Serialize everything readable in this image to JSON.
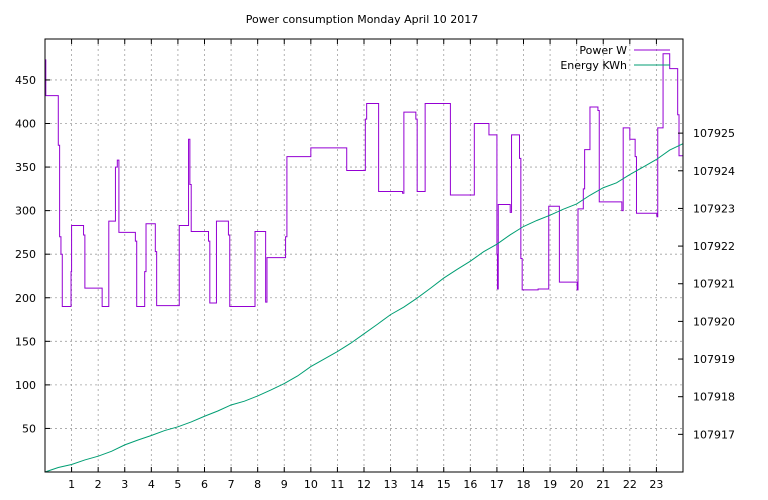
{
  "chart_data": {
    "type": "line",
    "title": "Power consumption Monday April 10 2017",
    "xlabel": "",
    "ylabel": "",
    "y2label": "",
    "xlim": [
      0,
      24
    ],
    "ylim": [
      0,
      497
    ],
    "y2lim": [
      107916,
      107927.5
    ],
    "x_ticks": [
      1,
      2,
      3,
      4,
      5,
      6,
      7,
      8,
      9,
      10,
      11,
      12,
      13,
      14,
      15,
      16,
      17,
      18,
      19,
      20,
      21,
      22,
      23
    ],
    "y_ticks": [
      50,
      100,
      150,
      200,
      250,
      300,
      350,
      400,
      450
    ],
    "y2_ticks": [
      107917,
      107918,
      107919,
      107920,
      107921,
      107922,
      107923,
      107924,
      107925
    ],
    "grid": true,
    "legend_position": "top-right",
    "series": [
      {
        "name": "Power W",
        "axis": "y",
        "color": "#9400d3",
        "style": "steps",
        "points": [
          [
            0.0,
            473
          ],
          [
            0.03,
            432
          ],
          [
            0.45,
            432
          ],
          [
            0.5,
            375
          ],
          [
            0.55,
            270
          ],
          [
            0.6,
            250
          ],
          [
            0.65,
            190
          ],
          [
            0.95,
            190
          ],
          [
            0.98,
            230
          ],
          [
            1.0,
            283
          ],
          [
            1.4,
            283
          ],
          [
            1.45,
            272
          ],
          [
            1.5,
            211
          ],
          [
            2.1,
            211
          ],
          [
            2.15,
            190
          ],
          [
            2.35,
            190
          ],
          [
            2.4,
            288
          ],
          [
            2.6,
            288
          ],
          [
            2.65,
            350
          ],
          [
            2.72,
            358
          ],
          [
            2.78,
            275
          ],
          [
            3.35,
            275
          ],
          [
            3.4,
            265
          ],
          [
            3.45,
            190
          ],
          [
            3.7,
            190
          ],
          [
            3.75,
            230
          ],
          [
            3.8,
            285
          ],
          [
            4.1,
            285
          ],
          [
            4.15,
            253
          ],
          [
            4.2,
            191
          ],
          [
            5.0,
            191
          ],
          [
            5.05,
            283
          ],
          [
            5.35,
            283
          ],
          [
            5.4,
            382
          ],
          [
            5.45,
            330
          ],
          [
            5.5,
            276
          ],
          [
            6.1,
            276
          ],
          [
            6.15,
            265
          ],
          [
            6.2,
            194
          ],
          [
            6.4,
            194
          ],
          [
            6.45,
            288
          ],
          [
            6.85,
            288
          ],
          [
            6.9,
            272
          ],
          [
            6.95,
            190
          ],
          [
            7.85,
            190
          ],
          [
            7.9,
            276
          ],
          [
            8.25,
            276
          ],
          [
            8.3,
            195
          ],
          [
            8.35,
            246
          ],
          [
            9.0,
            246
          ],
          [
            9.05,
            270
          ],
          [
            9.1,
            362
          ],
          [
            9.95,
            362
          ],
          [
            10.0,
            372
          ],
          [
            11.3,
            372
          ],
          [
            11.35,
            346
          ],
          [
            12.0,
            346
          ],
          [
            12.05,
            405
          ],
          [
            12.1,
            423
          ],
          [
            12.5,
            423
          ],
          [
            12.55,
            322
          ],
          [
            13.4,
            322
          ],
          [
            13.45,
            320
          ],
          [
            13.5,
            413
          ],
          [
            13.9,
            413
          ],
          [
            13.95,
            405
          ],
          [
            14.0,
            322
          ],
          [
            14.25,
            322
          ],
          [
            14.3,
            423
          ],
          [
            15.2,
            423
          ],
          [
            15.25,
            318
          ],
          [
            16.1,
            318
          ],
          [
            16.15,
            400
          ],
          [
            16.65,
            400
          ],
          [
            16.7,
            387
          ],
          [
            16.95,
            387
          ],
          [
            17.0,
            250
          ],
          [
            17.02,
            210
          ],
          [
            17.05,
            307
          ],
          [
            17.45,
            307
          ],
          [
            17.5,
            298
          ],
          [
            17.55,
            387
          ],
          [
            17.8,
            387
          ],
          [
            17.85,
            360
          ],
          [
            17.9,
            245
          ],
          [
            17.95,
            209
          ],
          [
            18.5,
            209
          ],
          [
            18.55,
            210
          ],
          [
            18.9,
            210
          ],
          [
            18.95,
            305
          ],
          [
            19.3,
            305
          ],
          [
            19.35,
            218
          ],
          [
            20.0,
            218
          ],
          [
            20.02,
            209
          ],
          [
            20.05,
            302
          ],
          [
            20.2,
            302
          ],
          [
            20.25,
            325
          ],
          [
            20.3,
            370
          ],
          [
            20.45,
            370
          ],
          [
            20.5,
            419
          ],
          [
            20.75,
            419
          ],
          [
            20.8,
            415
          ],
          [
            20.85,
            310
          ],
          [
            21.65,
            310
          ],
          [
            21.7,
            300
          ],
          [
            21.75,
            395
          ],
          [
            21.95,
            395
          ],
          [
            22.0,
            382
          ],
          [
            22.15,
            382
          ],
          [
            22.2,
            362
          ],
          [
            22.25,
            297
          ],
          [
            23.0,
            297
          ],
          [
            23.02,
            293
          ],
          [
            23.05,
            395
          ],
          [
            23.2,
            395
          ],
          [
            23.25,
            480
          ],
          [
            23.45,
            480
          ],
          [
            23.5,
            463
          ],
          [
            23.75,
            463
          ],
          [
            23.8,
            410
          ],
          [
            23.85,
            363
          ],
          [
            24.0,
            363
          ]
        ]
      },
      {
        "name": "Energy KWh",
        "axis": "y2",
        "color": "#009e73",
        "style": "line",
        "points": [
          [
            0.0,
            107916.0
          ],
          [
            0.5,
            107916.12
          ],
          [
            1.0,
            107916.2
          ],
          [
            1.5,
            107916.32
          ],
          [
            2.0,
            107916.42
          ],
          [
            2.5,
            107916.55
          ],
          [
            3.0,
            107916.72
          ],
          [
            3.5,
            107916.85
          ],
          [
            4.0,
            107916.97
          ],
          [
            4.5,
            107917.1
          ],
          [
            5.0,
            107917.2
          ],
          [
            5.5,
            107917.33
          ],
          [
            6.0,
            107917.48
          ],
          [
            6.5,
            107917.62
          ],
          [
            7.0,
            107917.78
          ],
          [
            7.5,
            107917.88
          ],
          [
            8.0,
            107918.02
          ],
          [
            8.5,
            107918.18
          ],
          [
            9.0,
            107918.35
          ],
          [
            9.5,
            107918.55
          ],
          [
            10.0,
            107918.8
          ],
          [
            10.5,
            107919.0
          ],
          [
            11.0,
            107919.2
          ],
          [
            11.5,
            107919.42
          ],
          [
            12.0,
            107919.67
          ],
          [
            12.5,
            107919.92
          ],
          [
            13.0,
            107920.18
          ],
          [
            13.5,
            107920.38
          ],
          [
            14.0,
            107920.62
          ],
          [
            14.5,
            107920.88
          ],
          [
            15.0,
            107921.15
          ],
          [
            15.5,
            107921.38
          ],
          [
            16.0,
            107921.6
          ],
          [
            16.5,
            107921.85
          ],
          [
            17.0,
            107922.05
          ],
          [
            17.5,
            107922.3
          ],
          [
            18.0,
            107922.52
          ],
          [
            18.5,
            107922.68
          ],
          [
            19.0,
            107922.82
          ],
          [
            19.5,
            107922.98
          ],
          [
            20.0,
            107923.12
          ],
          [
            20.5,
            107923.35
          ],
          [
            21.0,
            107923.55
          ],
          [
            21.5,
            107923.68
          ],
          [
            22.0,
            107923.9
          ],
          [
            22.5,
            107924.1
          ],
          [
            23.0,
            107924.3
          ],
          [
            23.5,
            107924.55
          ],
          [
            24.0,
            107924.72
          ]
        ]
      }
    ]
  }
}
